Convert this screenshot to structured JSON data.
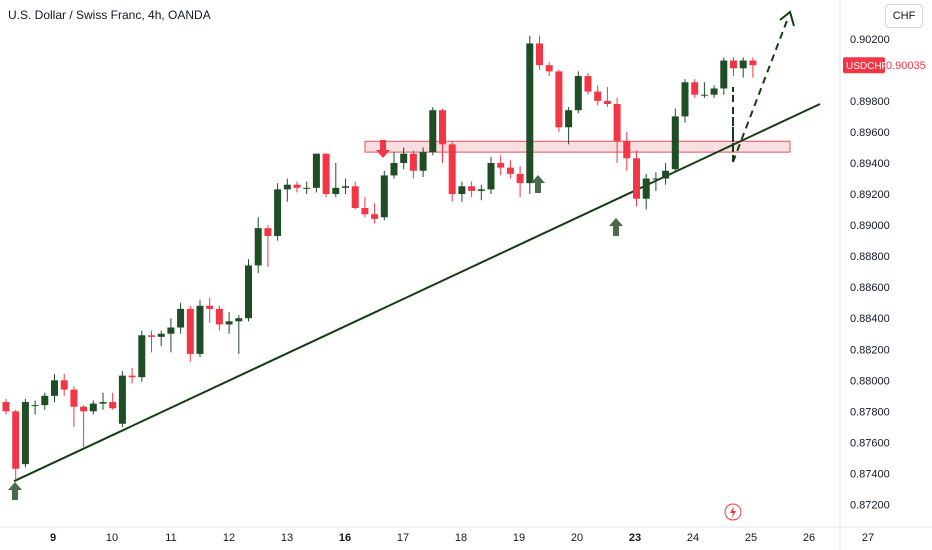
{
  "header": {
    "title": "U.S. Dollar / Swiss Franc, 4h, OANDA",
    "currency_button": "CHF"
  },
  "colors": {
    "up": "#1f5a2a",
    "down": "#f23645",
    "trendline": "#143d14",
    "zone_fill": "#f7c9cf",
    "zone_border": "#e0505e",
    "arrow_up": "#4a6b4a",
    "arrow_down": "#f23645",
    "price_badge": "#f23645"
  },
  "chart_data": {
    "type": "candlestick",
    "symbol": "USDCHF",
    "last_price": "0.90035",
    "ylim": [
      0.871,
      0.9045
    ],
    "y_ticks": [
      "0.90200",
      "0.89800",
      "0.89600",
      "0.89400",
      "0.89200",
      "0.89000",
      "0.88800",
      "0.88600",
      "0.88400",
      "0.88200",
      "0.88000",
      "0.87800",
      "0.87600",
      "0.87400",
      "0.87200"
    ],
    "x_ticks": [
      {
        "label": "9",
        "bold": true
      },
      {
        "label": "10",
        "bold": false
      },
      {
        "label": "11",
        "bold": false
      },
      {
        "label": "12",
        "bold": false
      },
      {
        "label": "13",
        "bold": false
      },
      {
        "label": "16",
        "bold": true
      },
      {
        "label": "17",
        "bold": false
      },
      {
        "label": "18",
        "bold": false
      },
      {
        "label": "19",
        "bold": false
      },
      {
        "label": "20",
        "bold": false
      },
      {
        "label": "23",
        "bold": true
      },
      {
        "label": "24",
        "bold": false
      },
      {
        "label": "25",
        "bold": false
      },
      {
        "label": "26",
        "bold": false
      },
      {
        "label": "27",
        "bold": false
      }
    ],
    "candles": [
      [
        0.8786,
        0.8788,
        0.8778,
        0.878
      ],
      [
        0.878,
        0.8781,
        0.8736,
        0.8743
      ],
      [
        0.8746,
        0.8788,
        0.8744,
        0.8786
      ],
      [
        0.8784,
        0.8787,
        0.8778,
        0.8784
      ],
      [
        0.8784,
        0.8792,
        0.8781,
        0.879
      ],
      [
        0.879,
        0.8804,
        0.8786,
        0.88
      ],
      [
        0.88,
        0.8804,
        0.879,
        0.8794
      ],
      [
        0.8794,
        0.8796,
        0.877,
        0.8783
      ],
      [
        0.8783,
        0.8784,
        0.8757,
        0.878
      ],
      [
        0.878,
        0.8787,
        0.8778,
        0.8785
      ],
      [
        0.8785,
        0.8792,
        0.8781,
        0.8786
      ],
      [
        0.8786,
        0.8792,
        0.8781,
        0.8782
      ],
      [
        0.8772,
        0.8806,
        0.877,
        0.8803
      ],
      [
        0.8803,
        0.8808,
        0.8798,
        0.8802
      ],
      [
        0.8802,
        0.8832,
        0.8799,
        0.8829
      ],
      [
        0.8829,
        0.8832,
        0.8818,
        0.8828
      ],
      [
        0.8828,
        0.8832,
        0.8822,
        0.883
      ],
      [
        0.883,
        0.884,
        0.8818,
        0.8834
      ],
      [
        0.8834,
        0.885,
        0.883,
        0.8846
      ],
      [
        0.8846,
        0.8848,
        0.8812,
        0.8817
      ],
      [
        0.8817,
        0.8852,
        0.8815,
        0.8848
      ],
      [
        0.8848,
        0.8853,
        0.8837,
        0.8846
      ],
      [
        0.8846,
        0.8848,
        0.8832,
        0.8836
      ],
      [
        0.8836,
        0.8844,
        0.883,
        0.8838
      ],
      [
        0.8838,
        0.8842,
        0.8817,
        0.884
      ],
      [
        0.884,
        0.8878,
        0.8838,
        0.8874
      ],
      [
        0.8874,
        0.8905,
        0.8869,
        0.8898
      ],
      [
        0.8898,
        0.89,
        0.8873,
        0.8893
      ],
      [
        0.8893,
        0.8927,
        0.889,
        0.8923
      ],
      [
        0.8923,
        0.893,
        0.8915,
        0.8926
      ],
      [
        0.8926,
        0.8928,
        0.8921,
        0.8924
      ],
      [
        0.8924,
        0.8928,
        0.892,
        0.8924
      ],
      [
        0.8924,
        0.8946,
        0.8921,
        0.8946
      ],
      [
        0.8946,
        0.8946,
        0.8918,
        0.892
      ],
      [
        0.892,
        0.894,
        0.8918,
        0.8924
      ],
      [
        0.8924,
        0.893,
        0.892,
        0.8925
      ],
      [
        0.8925,
        0.8928,
        0.891,
        0.8911
      ],
      [
        0.8911,
        0.8918,
        0.8905,
        0.8907
      ],
      [
        0.8907,
        0.8914,
        0.8901,
        0.8904
      ],
      [
        0.8905,
        0.8935,
        0.8903,
        0.8932
      ],
      [
        0.8932,
        0.8947,
        0.893,
        0.894
      ],
      [
        0.894,
        0.895,
        0.8936,
        0.8946
      ],
      [
        0.8946,
        0.8948,
        0.893,
        0.8935
      ],
      [
        0.8935,
        0.895,
        0.8931,
        0.8947
      ],
      [
        0.8947,
        0.8976,
        0.8945,
        0.8974
      ],
      [
        0.8974,
        0.8975,
        0.894,
        0.8952
      ],
      [
        0.8952,
        0.8954,
        0.8915,
        0.892
      ],
      [
        0.892,
        0.8928,
        0.8915,
        0.8925
      ],
      [
        0.8925,
        0.8928,
        0.8918,
        0.8922
      ],
      [
        0.8922,
        0.8926,
        0.8916,
        0.8923
      ],
      [
        0.8923,
        0.8944,
        0.892,
        0.894
      ],
      [
        0.894,
        0.8945,
        0.8932,
        0.8937
      ],
      [
        0.8937,
        0.8942,
        0.893,
        0.8933
      ],
      [
        0.8933,
        0.8938,
        0.8918,
        0.8927
      ],
      [
        0.8927,
        0.9022,
        0.892,
        0.9017
      ],
      [
        0.9017,
        0.9022,
        0.9,
        0.9003
      ],
      [
        0.9003,
        0.9005,
        0.8996,
        0.8999
      ],
      [
        0.8999,
        0.9,
        0.896,
        0.8963
      ],
      [
        0.8963,
        0.8976,
        0.8952,
        0.8974
      ],
      [
        0.8974,
        0.8999,
        0.8972,
        0.8996
      ],
      [
        0.8996,
        0.8998,
        0.8984,
        0.8986
      ],
      [
        0.8986,
        0.899,
        0.8977,
        0.898
      ],
      [
        0.898,
        0.8989,
        0.8976,
        0.8978
      ],
      [
        0.8978,
        0.8982,
        0.894,
        0.8954
      ],
      [
        0.8954,
        0.896,
        0.8935,
        0.8943
      ],
      [
        0.8943,
        0.8948,
        0.8912,
        0.8917
      ],
      [
        0.8917,
        0.8933,
        0.891,
        0.893
      ],
      [
        0.893,
        0.8934,
        0.8922,
        0.893
      ],
      [
        0.893,
        0.894,
        0.8926,
        0.8935
      ],
      [
        0.8936,
        0.8975,
        0.8934,
        0.897
      ],
      [
        0.897,
        0.8994,
        0.8966,
        0.8992
      ],
      [
        0.8992,
        0.8994,
        0.8982,
        0.8984
      ],
      [
        0.8984,
        0.8992,
        0.8982,
        0.8984
      ],
      [
        0.8984,
        0.899,
        0.8982,
        0.8988
      ],
      [
        0.8988,
        0.9008,
        0.8984,
        0.9006
      ],
      [
        0.9006,
        0.9008,
        0.8996,
        0.9001
      ],
      [
        0.9001,
        0.9008,
        0.8995,
        0.9006
      ],
      [
        0.9006,
        0.9008,
        0.8995,
        0.9003
      ]
    ],
    "trendline": [
      [
        0,
        0.8735
      ],
      [
        0.8745,
        0.8978
      ]
    ],
    "zone": {
      "y_low": 0.8947,
      "y_high": 0.8954
    },
    "arrows": [
      {
        "dir": "up",
        "price": 0.8734
      },
      {
        "dir": "down",
        "price": 0.8962
      },
      {
        "dir": "up",
        "price": 0.8937
      },
      {
        "dir": "up",
        "price": 0.8911
      }
    ],
    "projection": [
      [
        0.8745,
        0.8949
      ],
      [
        0.8808,
        0.9046
      ]
    ]
  }
}
